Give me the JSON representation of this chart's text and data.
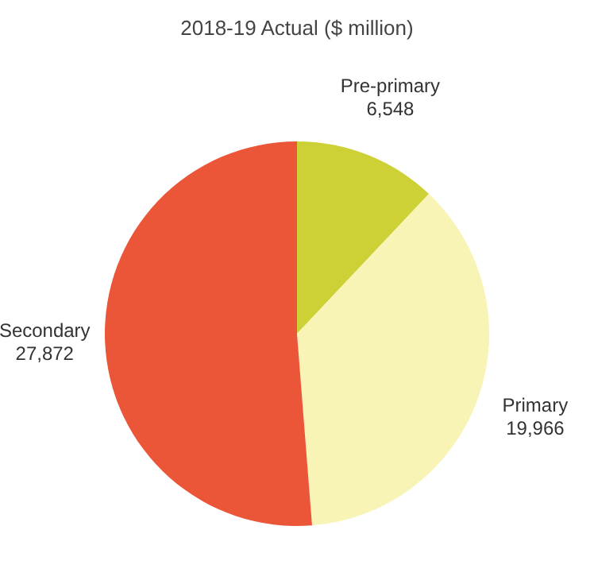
{
  "chart_data": {
    "type": "pie",
    "title": "2018-19 Actual ($ million)",
    "categories": [
      "Pre-primary",
      "Primary",
      "Secondary"
    ],
    "values": [
      6548,
      19966,
      27872
    ],
    "colors": [
      "#cdd135",
      "#f8f4b6",
      "#ec5638"
    ],
    "value_labels": [
      "6,548",
      "19,966",
      "27,872"
    ]
  }
}
